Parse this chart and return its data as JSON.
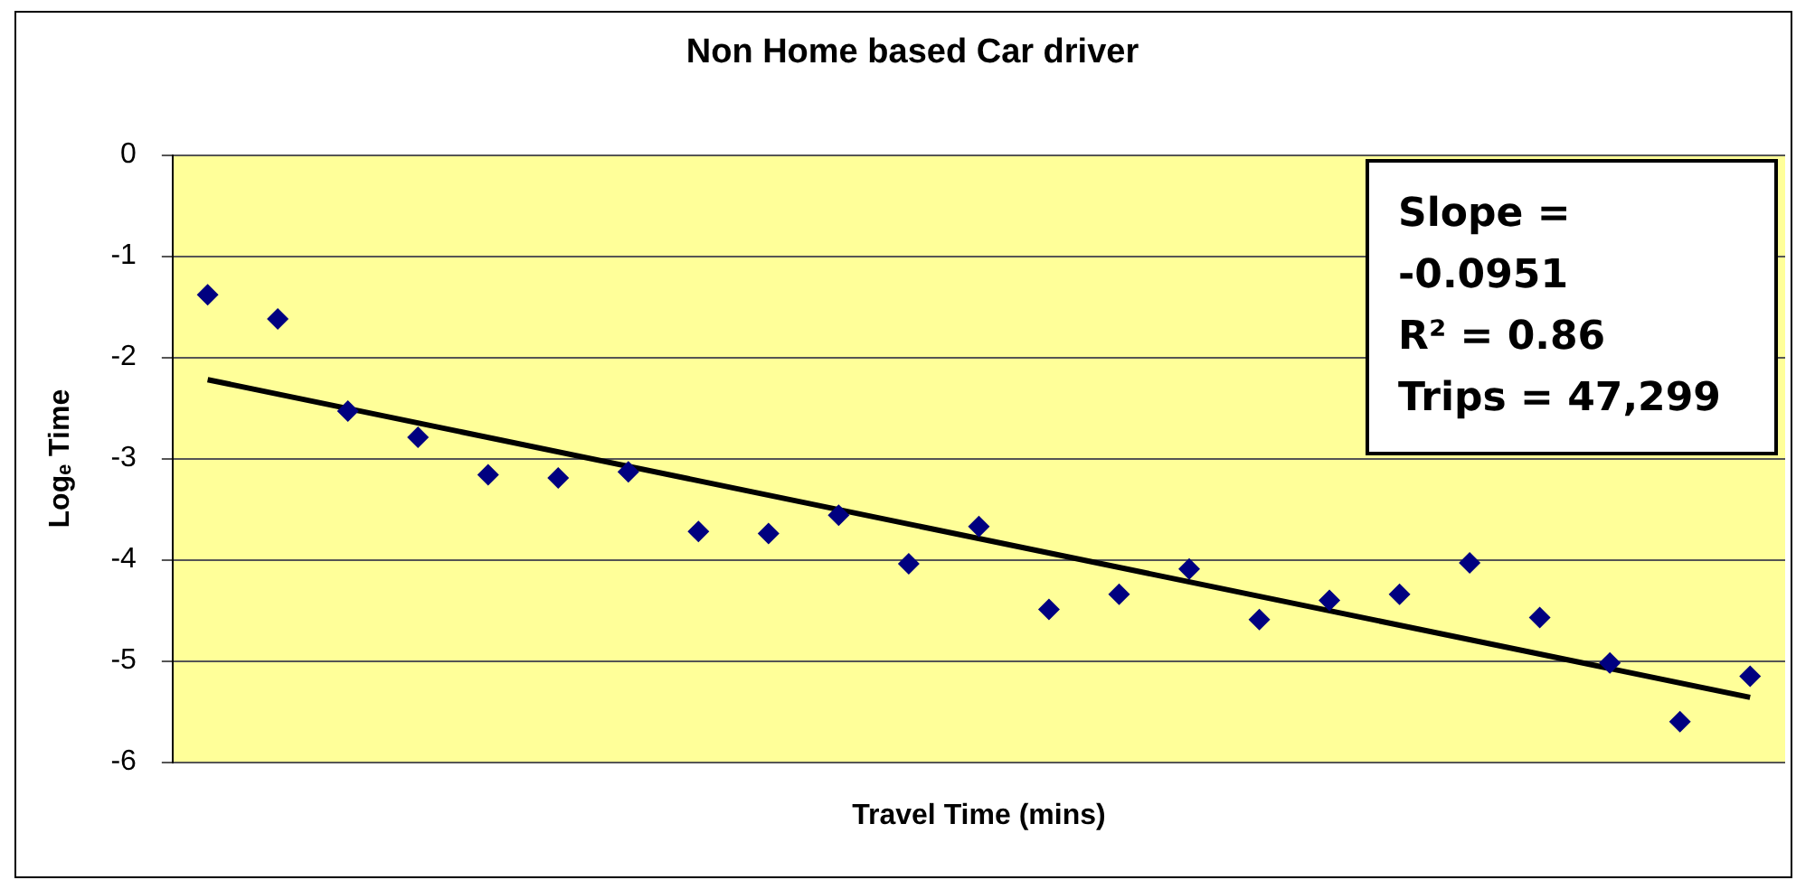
{
  "chart_data": {
    "type": "scatter",
    "title": "Non Home based Car driver",
    "xlabel": "Travel Time (mins)",
    "ylabel": "Logₑ Time",
    "categories": [
      null,
      null,
      null,
      null,
      null,
      null,
      null,
      null,
      null,
      null,
      null,
      null,
      null,
      null,
      null,
      null,
      null,
      null,
      null,
      null,
      null,
      null,
      null
    ],
    "ylim": [
      -6,
      0
    ],
    "yticks": [
      -6,
      -5,
      -4,
      -3,
      -2,
      -1,
      0
    ],
    "grid": "y",
    "legend": false,
    "tick_labels": "y",
    "annotations": [
      "Slope = -0.0951",
      "R² = 0.86",
      "Trips = 47,299"
    ],
    "series": [
      {
        "color": "#000080",
        "marker": "diamond",
        "values": [
          -1.38,
          -1.62,
          -2.53,
          -2.79,
          -3.16,
          -3.19,
          -3.13,
          -3.72,
          -3.74,
          -3.56,
          -4.04,
          -3.67,
          -4.49,
          -4.34,
          -4.09,
          -4.59,
          -4.4,
          -4.34,
          -4.03,
          -4.57,
          -5.02,
          -5.6,
          -5.15
        ]
      },
      {
        "type": "line",
        "color": "#000000",
        "marker": "none",
        "values": [
          -2.22,
          null,
          null,
          null,
          null,
          null,
          null,
          null,
          null,
          null,
          null,
          null,
          null,
          null,
          null,
          null,
          null,
          null,
          null,
          null,
          null,
          null,
          -5.36
        ]
      }
    ]
  }
}
